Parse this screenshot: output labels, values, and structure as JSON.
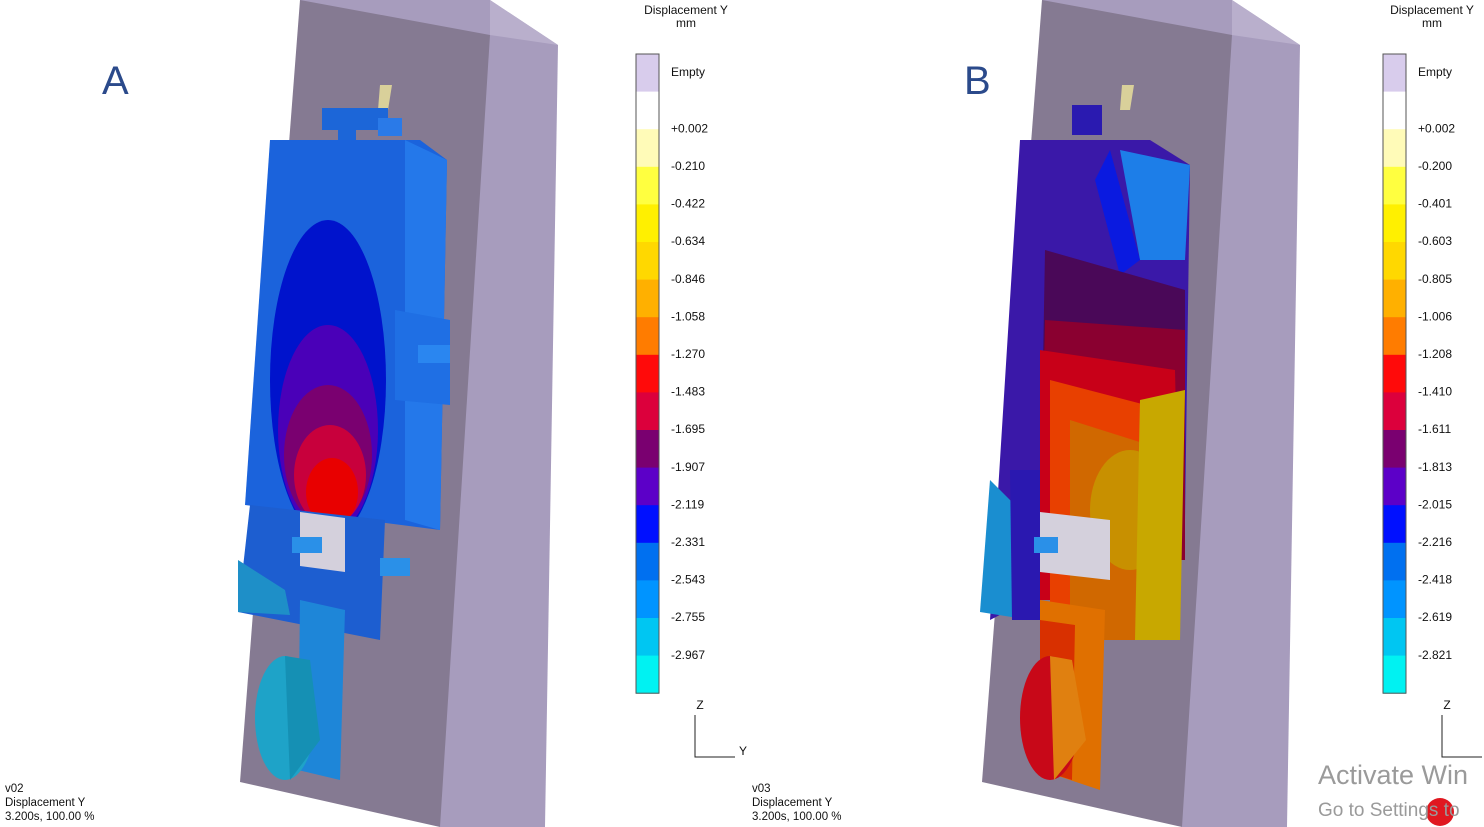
{
  "panels": [
    {
      "label": "A",
      "legend": {
        "title": "Displacement Y",
        "unit": "mm",
        "labels": [
          "Empty",
          "+0.002",
          "-0.210",
          "-0.422",
          "-0.634",
          "-0.846",
          "-1.058",
          "-1.270",
          "-1.483",
          "-1.695",
          "-1.907",
          "-2.119",
          "-2.331",
          "-2.543",
          "-2.755",
          "-2.967"
        ],
        "colors": [
          "#d8ccec",
          "#ffffff",
          "#fffbb8",
          "#ffff40",
          "#fff000",
          "#ffd800",
          "#ffb000",
          "#ff7c00",
          "#ff0a0a",
          "#dc003c",
          "#7a0070",
          "#5c00c8",
          "#0010ff",
          "#0070f0",
          "#0094ff",
          "#00c6f2",
          "#00f2f2"
        ]
      },
      "axes": {
        "z": "Z",
        "y": "Y"
      },
      "footer": [
        "v02",
        "Displacement Y",
        "3.200s, 100.00 %"
      ]
    },
    {
      "label": "B",
      "legend": {
        "title": "Displacement Y",
        "unit": "mm",
        "labels": [
          "Empty",
          "+0.002",
          "-0.200",
          "-0.401",
          "-0.603",
          "-0.805",
          "-1.006",
          "-1.208",
          "-1.410",
          "-1.611",
          "-1.813",
          "-2.015",
          "-2.216",
          "-2.418",
          "-2.619",
          "-2.821"
        ],
        "colors": [
          "#d8ccec",
          "#ffffff",
          "#fffbb8",
          "#ffff40",
          "#fff000",
          "#ffd800",
          "#ffb000",
          "#ff7c00",
          "#ff0a0a",
          "#dc003c",
          "#7a0070",
          "#5c00c8",
          "#0010ff",
          "#0070f0",
          "#0094ff",
          "#00c6f2",
          "#00f2f2"
        ]
      },
      "axes": {
        "z": "Z"
      },
      "footer": [
        "v03",
        "Displacement Y",
        "3.200s, 100.00 %"
      ]
    }
  ],
  "watermark": [
    "Activate Win",
    "Go to Settings to"
  ]
}
